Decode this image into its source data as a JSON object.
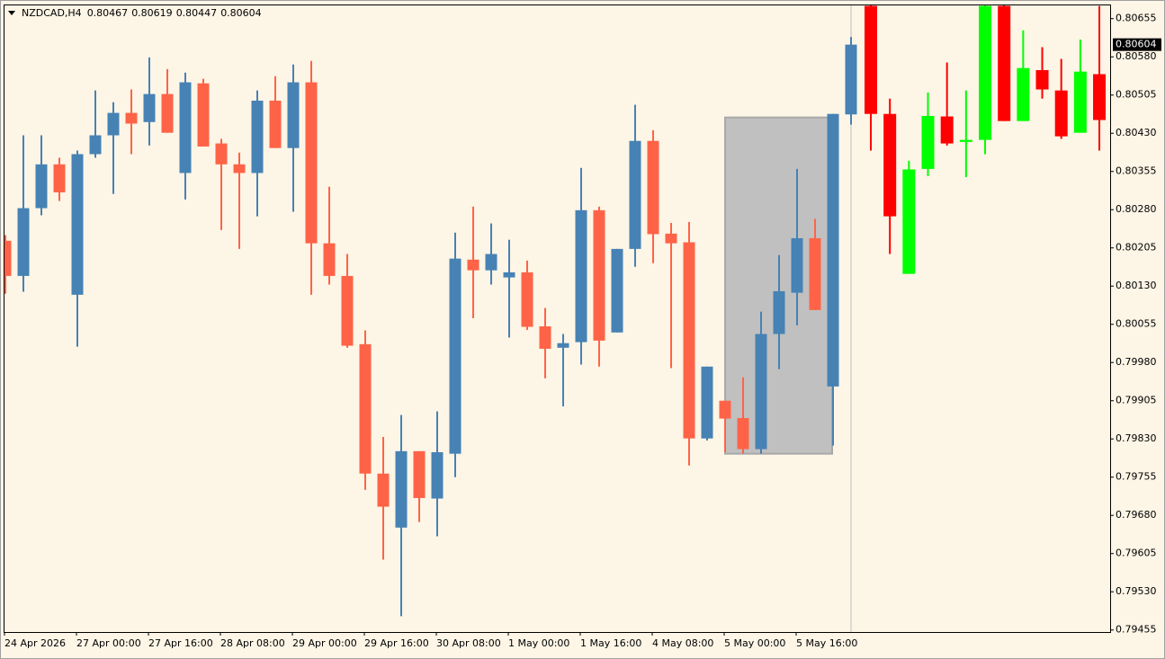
{
  "chart_data": {
    "type": "candlestick",
    "title": "NZDCAD,H4",
    "categories": [
      "24 Apr 2026",
      null,
      null,
      null,
      "27 Apr 00:00",
      null,
      null,
      null,
      "27 Apr 16:00",
      null,
      null,
      null,
      "28 Apr 08:00",
      null,
      null,
      null,
      "29 Apr 00:00",
      null,
      null,
      null,
      "29 Apr 16:00",
      null,
      null,
      null,
      "30 Apr 08:00",
      null,
      null,
      null,
      "1 May 00:00",
      null,
      null,
      null,
      "1 May 16:00",
      null,
      null,
      null,
      "4 May 08:00",
      null,
      null,
      null,
      "5 May 00:00",
      null,
      null,
      null,
      "5 May 16:00",
      null,
      null,
      null
    ],
    "open": [
      0.80219,
      0.8015,
      0.80283,
      0.80369,
      0.80113,
      0.80389,
      0.80426,
      0.8047,
      0.80452,
      0.80507,
      0.80352,
      0.80528,
      0.8041,
      0.80369,
      0.80352,
      0.80494,
      0.80401,
      0.8053,
      0.80214,
      0.8015,
      0.80016,
      0.79762,
      0.79656,
      0.79806,
      0.79713,
      0.79801,
      0.80182,
      0.80161,
      0.80147,
      0.80157,
      0.80051,
      0.80009,
      0.8002,
      0.80279,
      0.80039,
      0.80203,
      0.80415,
      0.80233,
      0.80216,
      0.79831,
      0.79905,
      0.79871,
      0.7981,
      0.80036,
      0.80117,
      0.80224,
      0.79933,
      0.80467
    ],
    "high": [
      0.8023,
      0.80426,
      0.80426,
      0.80382,
      0.80396,
      0.80514,
      0.80491,
      0.80516,
      0.80579,
      0.80556,
      0.80549,
      0.80537,
      0.80419,
      0.80392,
      0.80514,
      0.80542,
      0.80565,
      0.80572,
      0.80325,
      0.80193,
      0.80043,
      0.79834,
      0.79877,
      0.79806,
      0.79884,
      0.80235,
      0.80286,
      0.80253,
      0.80221,
      0.8018,
      0.80087,
      0.80036,
      0.80362,
      0.80286,
      0.80203,
      0.80486,
      0.80436,
      0.80254,
      0.80256,
      0.79972,
      0.79905,
      0.79951,
      0.8008,
      0.80191,
      0.8036,
      0.80262,
      0.80468,
      0.80619
    ],
    "low": [
      0.80115,
      0.80119,
      0.80269,
      0.80297,
      0.80011,
      0.80382,
      0.80311,
      0.80389,
      0.80406,
      0.80431,
      0.803,
      0.80404,
      0.8024,
      0.80203,
      0.80267,
      0.80401,
      0.80276,
      0.80113,
      0.80133,
      0.80009,
      0.7973,
      0.79593,
      0.79482,
      0.79667,
      0.79639,
      0.79755,
      0.80067,
      0.80133,
      0.80029,
      0.80044,
      0.79949,
      0.79894,
      0.79976,
      0.79972,
      0.80039,
      0.80168,
      0.80175,
      0.79969,
      0.79778,
      0.79827,
      0.79804,
      0.79801,
      0.79801,
      0.79967,
      0.80053,
      0.80083,
      0.79817,
      0.80447
    ],
    "close": [
      0.8015,
      0.80283,
      0.80369,
      0.80314,
      0.80389,
      0.80426,
      0.8047,
      0.80449,
      0.80507,
      0.80431,
      0.8053,
      0.80404,
      0.80369,
      0.80352,
      0.80494,
      0.80401,
      0.8053,
      0.80214,
      0.8015,
      0.80013,
      0.79762,
      0.79697,
      0.79806,
      0.79714,
      0.79804,
      0.80184,
      0.80161,
      0.80193,
      0.80157,
      0.8005,
      0.80007,
      0.80018,
      0.80279,
      0.80023,
      0.80203,
      0.80415,
      0.80232,
      0.80214,
      0.79831,
      0.79972,
      0.7987,
      0.7981,
      0.80036,
      0.8012,
      0.80224,
      0.80083,
      0.80468,
      0.80604
    ],
    "up_color": "#4682b4",
    "down_color": "#ff6347",
    "forecast": {
      "open": [
        0.8068,
        0.80468,
        0.80154,
        0.8036,
        0.80463,
        0.80413,
        0.80417,
        0.8068,
        0.80454,
        0.80554,
        0.80514,
        0.80431,
        0.80546
      ],
      "high": [
        0.80683,
        0.80498,
        0.80376,
        0.8051,
        0.80569,
        0.80514,
        0.80683,
        0.80683,
        0.80632,
        0.80599,
        0.80576,
        0.80614,
        0.8068
      ],
      "low": [
        0.80396,
        0.80193,
        0.80154,
        0.80346,
        0.80406,
        0.80344,
        0.80389,
        0.80454,
        0.80454,
        0.80498,
        0.80419,
        0.80431,
        0.80396
      ],
      "close": [
        0.80468,
        0.80267,
        0.80359,
        0.80464,
        0.8041,
        0.80417,
        0.8068,
        0.80454,
        0.80558,
        0.80516,
        0.80424,
        0.80551,
        0.80456
      ],
      "up_color": "#00ff00",
      "down_color": "#ff0000"
    },
    "box": {
      "high": 0.80461,
      "low": 0.79801,
      "color": "#c0c0c0"
    },
    "ylim": [
      0.79451,
      0.80681
    ],
    "yticks": [
      0.80655,
      {
        "value": 0.8058,
        "label": "0.80580"
      },
      0.80505,
      {
        "value": 0.8043,
        "label": "0.80430"
      },
      0.80355,
      {
        "value": 0.8028,
        "label": "0.80280"
      },
      0.80205,
      {
        "value": 0.8013,
        "label": "0.80130"
      },
      0.80055,
      {
        "value": 0.7998,
        "label": "0.79980"
      },
      0.79905,
      {
        "value": 0.7983,
        "label": "0.79830"
      },
      0.79755,
      {
        "value": 0.7968,
        "label": "0.79680"
      },
      0.79605,
      {
        "value": 0.7953,
        "label": "0.79530"
      },
      0.79455
    ]
  }
}
